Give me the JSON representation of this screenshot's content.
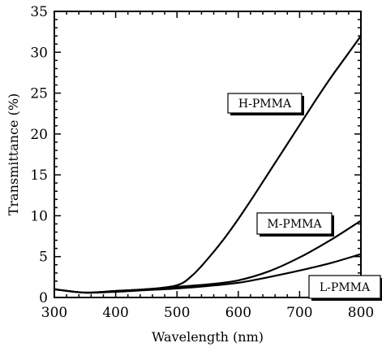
{
  "chart_data": {
    "type": "line",
    "xlabel": "Wavelength (nm)",
    "ylabel": "Transmittance (%)",
    "xlim": [
      300,
      800
    ],
    "ylim": [
      0,
      35
    ],
    "x_ticks": [
      "300",
      "400",
      "500",
      "600",
      "700",
      "800"
    ],
    "y_ticks": [
      "0",
      "5",
      "10",
      "15",
      "20",
      "25",
      "30",
      "35"
    ],
    "grid": false,
    "legend": "inline labels",
    "series": [
      {
        "name": "H-PMMA",
        "x": [
          300,
          350,
          400,
          450,
          500,
          525,
          550,
          575,
          600,
          625,
          650,
          675,
          700,
          725,
          750,
          775,
          800
        ],
        "y": [
          1.0,
          0.6,
          0.8,
          1.0,
          1.5,
          2.7,
          4.7,
          7.0,
          9.6,
          12.4,
          15.3,
          18.2,
          21.1,
          24.0,
          26.8,
          29.4,
          32.0
        ]
      },
      {
        "name": "M-PMMA",
        "x": [
          300,
          350,
          400,
          450,
          500,
          550,
          600,
          650,
          700,
          750,
          800
        ],
        "y": [
          1.0,
          0.6,
          0.8,
          1.0,
          1.3,
          1.6,
          2.1,
          3.2,
          4.9,
          7.0,
          9.4
        ]
      },
      {
        "name": "L-PMMA",
        "x": [
          300,
          350,
          400,
          450,
          500,
          550,
          600,
          650,
          700,
          750,
          800
        ],
        "y": [
          1.0,
          0.6,
          0.7,
          0.9,
          1.1,
          1.4,
          1.8,
          2.5,
          3.3,
          4.2,
          5.3
        ]
      }
    ]
  }
}
